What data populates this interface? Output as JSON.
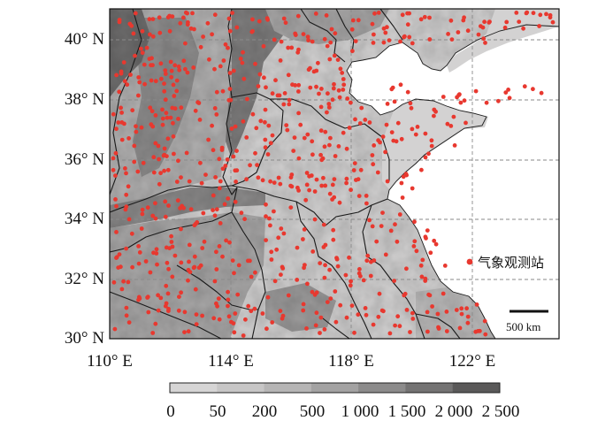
{
  "map": {
    "lat_labels": [
      "40° N",
      "38° N",
      "36° N",
      "34° N",
      "32° N",
      "30° N"
    ],
    "lon_labels": [
      "110° E",
      "114° E",
      "118° E",
      "122° E"
    ],
    "legend": {
      "marker_color": "#e8382f",
      "label": "气象观测站"
    },
    "scale_bar": {
      "label": "500 km"
    },
    "colorbar": {
      "tick_labels": [
        "0",
        "50",
        "200",
        "500",
        "1 000",
        "1 500",
        "2 000",
        "2 500"
      ],
      "colors": [
        "#d6d5d5",
        "#c7c6c6",
        "#b6b5b5",
        "#a3a2a2",
        "#8c8b8b",
        "#747373",
        "#5a5959"
      ]
    },
    "colors": {
      "sea": "#ffffff",
      "land_low": "#d3d2d2",
      "land_high": "#5f5e5e",
      "station": "#e8382f",
      "border": "#1a1a1a",
      "grid": "#8a8a8a"
    }
  }
}
